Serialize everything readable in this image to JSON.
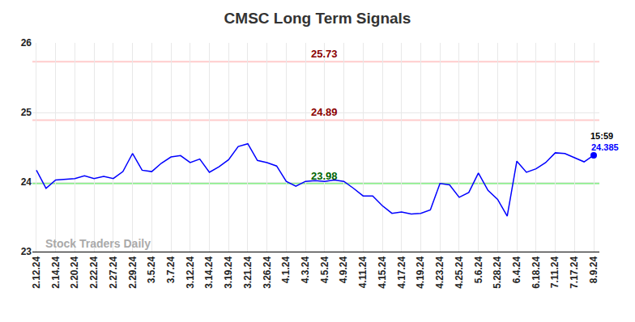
{
  "chart_data": {
    "type": "line",
    "title": "CMSC Long Term Signals",
    "categories": [
      "2.12.24",
      null,
      "2.14.24",
      null,
      "2.20.24",
      null,
      "2.22.24",
      null,
      "2.27.24",
      null,
      "2.29.24",
      null,
      "3.5.24",
      null,
      "3.7.24",
      null,
      "3.12.24",
      null,
      "3.14.24",
      null,
      "3.19.24",
      null,
      "3.21.24",
      null,
      "3.26.24",
      null,
      "4.1.24",
      null,
      "4.3.24",
      null,
      "4.5.24",
      null,
      "4.9.24",
      null,
      "4.11.24",
      null,
      "4.15.24",
      null,
      "4.17.24",
      null,
      "4.19.24",
      null,
      "4.23.24",
      null,
      "4.25.24",
      null,
      "5.6.24",
      null,
      "5.28.24",
      null,
      "6.4.24",
      null,
      "6.18.24",
      null,
      "7.11.24",
      null,
      "7.17.24",
      null,
      "8.9.24"
    ],
    "values": [
      24.17,
      23.91,
      24.03,
      24.04,
      24.05,
      24.09,
      24.05,
      24.08,
      24.05,
      24.15,
      24.41,
      24.17,
      24.15,
      24.27,
      24.36,
      24.38,
      24.28,
      24.33,
      24.14,
      24.22,
      24.32,
      24.51,
      24.55,
      24.31,
      24.28,
      24.23,
      24.01,
      23.94,
      24.01,
      24.02,
      24.01,
      24.03,
      24.01,
      23.91,
      23.8,
      23.8,
      23.66,
      23.55,
      23.57,
      23.54,
      23.55,
      23.6,
      23.98,
      23.96,
      23.78,
      23.85,
      24.13,
      23.88,
      23.75,
      23.51,
      24.3,
      24.14,
      24.19,
      24.28,
      24.42,
      24.41,
      24.35,
      24.29,
      24.385
    ],
    "color": "#0000ff",
    "ylim": [
      23,
      26
    ],
    "yticks": [
      23,
      24,
      25,
      26
    ],
    "grid": true,
    "reference_lines": [
      {
        "value": 25.73,
        "color": "#ffcccc",
        "label_color": "#8b0000"
      },
      {
        "value": 24.89,
        "color": "#ffcccc",
        "label_color": "#8b0000"
      },
      {
        "value": 23.98,
        "color": "#90ee90",
        "label_color": "#006400"
      }
    ],
    "last_point": {
      "time": "15:59",
      "value": 24.385,
      "color": "#0000ff"
    },
    "watermark": "Stock Traders Daily"
  }
}
